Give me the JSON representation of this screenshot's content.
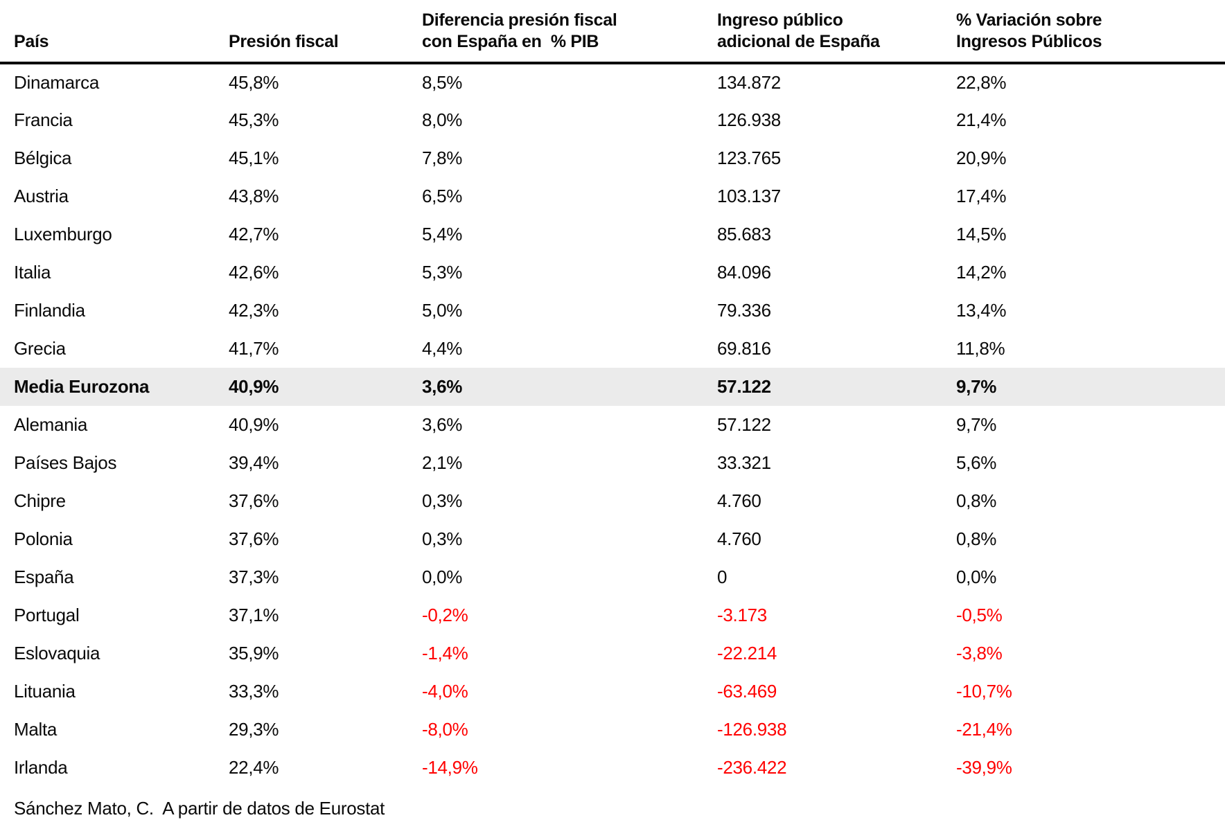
{
  "colors": {
    "text": "#0a0a0a",
    "negative_text": "#ff0000",
    "highlight_row_bg": "#ebebeb",
    "header_rule": "#000000",
    "background": "#ffffff"
  },
  "footer": {
    "source": "Sánchez Mato, C.  A partir de datos de Eurostat"
  },
  "chart_data": {
    "type": "table",
    "title": "",
    "columns": [
      "País",
      "Presión fiscal",
      "Diferencia presión fiscal\ncon España en  % PIB",
      "Ingreso público\nadicional de España",
      "% Variación sobre\nIngresos Públicos"
    ],
    "rows": [
      {
        "cells": [
          "Dinamarca",
          "45,8%",
          "8,5%",
          "134.872",
          "22,8%"
        ],
        "highlight": false,
        "negative": false
      },
      {
        "cells": [
          "Francia",
          "45,3%",
          "8,0%",
          "126.938",
          "21,4%"
        ],
        "highlight": false,
        "negative": false
      },
      {
        "cells": [
          "Bélgica",
          "45,1%",
          "7,8%",
          "123.765",
          "20,9%"
        ],
        "highlight": false,
        "negative": false
      },
      {
        "cells": [
          "Austria",
          "43,8%",
          "6,5%",
          "103.137",
          "17,4%"
        ],
        "highlight": false,
        "negative": false
      },
      {
        "cells": [
          "Luxemburgo",
          "42,7%",
          "5,4%",
          "85.683",
          "14,5%"
        ],
        "highlight": false,
        "negative": false
      },
      {
        "cells": [
          "Italia",
          "42,6%",
          "5,3%",
          "84.096",
          "14,2%"
        ],
        "highlight": false,
        "negative": false
      },
      {
        "cells": [
          "Finlandia",
          "42,3%",
          "5,0%",
          "79.336",
          "13,4%"
        ],
        "highlight": false,
        "negative": false
      },
      {
        "cells": [
          "Grecia",
          "41,7%",
          "4,4%",
          "69.816",
          "11,8%"
        ],
        "highlight": false,
        "negative": false
      },
      {
        "cells": [
          "Media Eurozona",
          "40,9%",
          "3,6%",
          "57.122",
          "9,7%"
        ],
        "highlight": true,
        "negative": false
      },
      {
        "cells": [
          "Alemania",
          "40,9%",
          "3,6%",
          "57.122",
          "9,7%"
        ],
        "highlight": false,
        "negative": false
      },
      {
        "cells": [
          "Países Bajos",
          "39,4%",
          "2,1%",
          "33.321",
          "5,6%"
        ],
        "highlight": false,
        "negative": false
      },
      {
        "cells": [
          "Chipre",
          "37,6%",
          "0,3%",
          "4.760",
          "0,8%"
        ],
        "highlight": false,
        "negative": false
      },
      {
        "cells": [
          "Polonia",
          "37,6%",
          "0,3%",
          "4.760",
          "0,8%"
        ],
        "highlight": false,
        "negative": false
      },
      {
        "cells": [
          "España",
          "37,3%",
          "0,0%",
          "0",
          "0,0%"
        ],
        "highlight": false,
        "negative": false
      },
      {
        "cells": [
          "Portugal",
          "37,1%",
          "-0,2%",
          "-3.173",
          "-0,5%"
        ],
        "highlight": false,
        "negative": true
      },
      {
        "cells": [
          "Eslovaquia",
          "35,9%",
          "-1,4%",
          "-22.214",
          "-3,8%"
        ],
        "highlight": false,
        "negative": true
      },
      {
        "cells": [
          "Lituania",
          "33,3%",
          "-4,0%",
          "-63.469",
          "-10,7%"
        ],
        "highlight": false,
        "negative": true
      },
      {
        "cells": [
          "Malta",
          "29,3%",
          "-8,0%",
          "-126.938",
          "-21,4%"
        ],
        "highlight": false,
        "negative": true
      },
      {
        "cells": [
          "Irlanda",
          "22,4%",
          "-14,9%",
          "-236.422",
          "-39,9%"
        ],
        "highlight": false,
        "negative": true
      }
    ]
  }
}
